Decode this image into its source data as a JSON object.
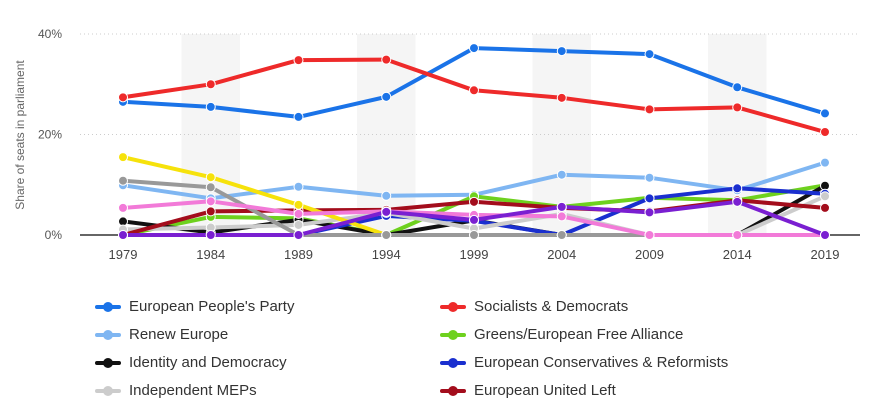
{
  "chart_data": {
    "type": "line",
    "ylabel": "Share of seats in parliament",
    "yticks": [
      "0%",
      "20%",
      "40%"
    ],
    "ylim": [
      0,
      40
    ],
    "categories": [
      "1979",
      "1984",
      "1989",
      "1994",
      "1999",
      "2004",
      "2009",
      "2014",
      "2019"
    ],
    "grid": true,
    "legend_position": "bottom",
    "series": [
      {
        "name": "European People's Party",
        "color": "#1a73e8",
        "values": [
          26.5,
          25.5,
          23.5,
          27.5,
          37.2,
          36.6,
          36.0,
          29.4,
          24.2
        ]
      },
      {
        "name": "Socialists & Democrats",
        "color": "#ee2a2a",
        "values": [
          27.4,
          30.0,
          34.8,
          34.9,
          28.8,
          27.3,
          25.0,
          25.4,
          20.5
        ]
      },
      {
        "name": "Renew Europe",
        "color": "#7fb6f2",
        "values": [
          9.9,
          7.3,
          9.6,
          7.8,
          8.0,
          12.0,
          11.4,
          8.9,
          14.4
        ]
      },
      {
        "name": "Greens/European Free Alliance",
        "color": "#6ed11e",
        "values": [
          0.0,
          3.6,
          3.3,
          0.0,
          7.7,
          5.6,
          7.4,
          6.9,
          9.9
        ]
      },
      {
        "name": "Identity and Democracy",
        "color": "#111111",
        "values": [
          2.7,
          0.5,
          3.0,
          0.0,
          2.9,
          0.0,
          0.0,
          0.0,
          9.8
        ]
      },
      {
        "name": "European Conservatives & Reformists",
        "color": "#1a2fcf",
        "values": [
          0.0,
          0.0,
          0.0,
          3.8,
          2.8,
          0.0,
          7.3,
          9.3,
          8.2
        ]
      },
      {
        "name": "Independent MEPs",
        "color": "#cccccc",
        "values": [
          1.1,
          1.5,
          2.0,
          4.4,
          1.3,
          4.2,
          0.0,
          0.0,
          7.7
        ]
      },
      {
        "name": "European United Left",
        "color": "#a30d1c",
        "values": [
          0.0,
          4.7,
          4.9,
          5.0,
          6.6,
          5.4,
          4.7,
          6.9,
          5.4
        ]
      },
      {
        "name": "",
        "color": "#f6e20b",
        "values": [
          15.5,
          11.5,
          6.0,
          0.0,
          0.0,
          0.0,
          0.0,
          0.0,
          0.0
        ]
      },
      {
        "name": "",
        "color": "#999999",
        "values": [
          10.8,
          9.5,
          0.0,
          0.0,
          0.0,
          0.0,
          0.0,
          0.0,
          0.0
        ]
      },
      {
        "name": "",
        "color": "#f27ad8",
        "values": [
          5.4,
          6.7,
          4.2,
          4.7,
          4.0,
          3.7,
          0.0,
          0.0,
          0.0
        ]
      },
      {
        "name": "",
        "color": "#7a1fd1",
        "values": [
          0.0,
          0.0,
          0.0,
          4.6,
          3.0,
          5.6,
          4.5,
          6.6,
          0.0
        ]
      }
    ]
  }
}
